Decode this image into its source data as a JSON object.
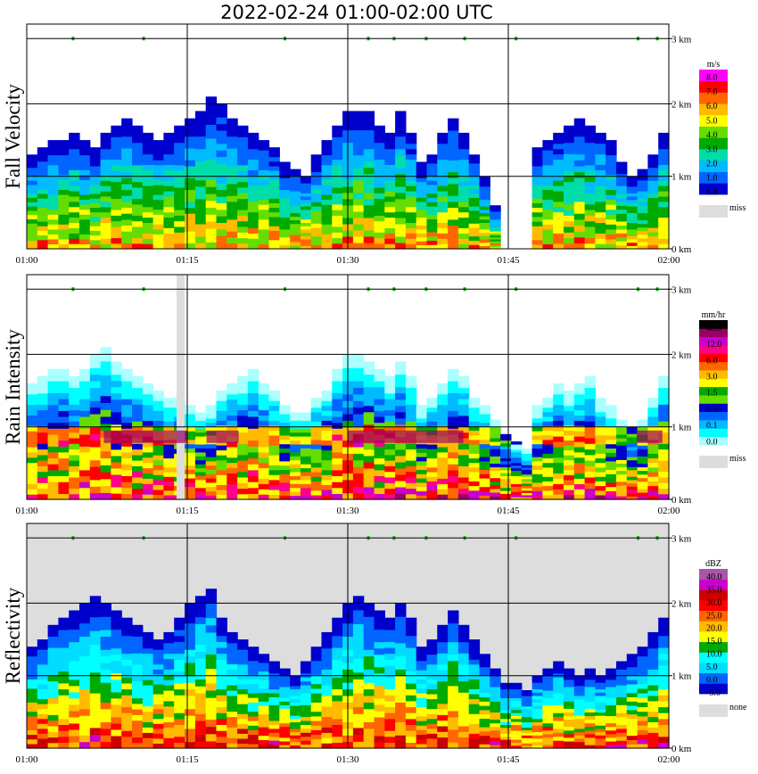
{
  "title": "2022-02-24   01:00-02:00 UTC",
  "chart_data": [
    {
      "type": "heatmap",
      "title": "Fall Velocity",
      "x_ticks": [
        "01:00",
        "01:15",
        "01:30",
        "01:45",
        "02:00"
      ],
      "y_ticks": [
        "0 km",
        "1 km",
        "2 km",
        "3 km"
      ],
      "ylim_km": [
        0,
        3.1
      ],
      "grid": true,
      "background": "#ffffff",
      "colorbar": {
        "unit": "m/s",
        "colors": [
          "#0000cc",
          "#0066ff",
          "#00bbff",
          "#00ddaa",
          "#00aa00",
          "#66dd00",
          "#ffff00",
          "#ffbb00",
          "#ff6600",
          "#ff0000",
          "#ff00ff"
        ],
        "labels": [
          "8.0",
          "7.0",
          "6.0",
          "5.0",
          "4.0",
          "3.0",
          "2.0",
          "1.0",
          "0.0"
        ],
        "miss_label": "miss"
      },
      "cloud_top_km": [
        1.3,
        1.4,
        1.5,
        1.5,
        1.6,
        1.5,
        1.4,
        1.6,
        1.7,
        1.8,
        1.7,
        1.6,
        1.5,
        1.6,
        1.7,
        1.8,
        1.9,
        2.1,
        2.0,
        1.8,
        1.7,
        1.6,
        1.5,
        1.4,
        1.2,
        1.1,
        1.0,
        1.3,
        1.5,
        1.7,
        1.9,
        1.9,
        1.9,
        1.7,
        1.6,
        1.9,
        1.6,
        1.2,
        1.3,
        1.6,
        1.8,
        1.6,
        1.3,
        1.0,
        0.6,
        0.0,
        0.0,
        0.0,
        1.4,
        1.5,
        1.6,
        1.7,
        1.8,
        1.7,
        1.6,
        1.5,
        1.2,
        1.0,
        1.1,
        1.3,
        1.6
      ],
      "cells": [
        [
          1,
          5
        ],
        [
          2,
          4
        ],
        [
          3,
          4
        ],
        [
          4,
          6
        ],
        [
          5,
          7
        ],
        [
          5,
          4
        ],
        [
          6,
          3
        ],
        [
          7,
          2
        ],
        [
          7,
          6
        ],
        [
          8,
          5
        ],
        [
          9,
          6
        ],
        [
          9,
          4
        ]
      ]
    },
    {
      "type": "heatmap",
      "title": "Rain Intensity",
      "x_ticks": [
        "01:00",
        "01:15",
        "01:30",
        "01:45",
        "02:00"
      ],
      "y_ticks": [
        "0 km",
        "1 km",
        "2 km",
        "3 km"
      ],
      "ylim_km": [
        0,
        3.1
      ],
      "grid": true,
      "background": "#ffffff",
      "colorbar": {
        "unit": "mm/hr",
        "colors": [
          "#aaffff",
          "#00ffff",
          "#00bbff",
          "#0066ff",
          "#0000cc",
          "#66dd00",
          "#00aa00",
          "#ffff00",
          "#ffbb00",
          "#ff6600",
          "#ff0000",
          "#ff0088",
          "#cc00cc",
          "#990066",
          "#000000"
        ],
        "labels": [
          "48.0",
          "12.0",
          "6.0",
          "3.0",
          "1.5",
          "0.5",
          "0.1",
          "0.0"
        ],
        "miss_label": "miss"
      },
      "cloud_top_km": [
        1.6,
        1.7,
        1.8,
        1.8,
        1.7,
        1.8,
        2.0,
        2.1,
        1.9,
        1.8,
        1.7,
        1.6,
        1.5,
        1.4,
        1.4,
        1.3,
        1.2,
        1.3,
        1.5,
        1.6,
        1.7,
        1.8,
        1.6,
        1.5,
        1.3,
        1.2,
        1.2,
        1.4,
        1.5,
        1.8,
        2.0,
        2.0,
        1.9,
        1.8,
        1.7,
        1.9,
        1.7,
        1.3,
        1.4,
        1.6,
        1.8,
        1.7,
        1.4,
        1.3,
        1.1,
        0.9,
        0.8,
        0.7,
        1.3,
        1.4,
        1.6,
        1.5,
        1.6,
        1.7,
        1.4,
        1.3,
        1.1,
        1.0,
        1.1,
        1.4,
        1.7
      ],
      "cells": [
        [
          3,
          7
        ],
        [
          5,
          8
        ],
        [
          7,
          9
        ],
        [
          9,
          11
        ],
        [
          11,
          12
        ],
        [
          13,
          13
        ],
        [
          14,
          14
        ],
        [
          10,
          10
        ],
        [
          8,
          5
        ],
        [
          6,
          3
        ],
        [
          4,
          2
        ],
        [
          2,
          1
        ]
      ]
    },
    {
      "type": "heatmap",
      "title": "Reflectivity",
      "x_ticks": [
        "01:00",
        "01:15",
        "01:30",
        "01:45",
        "02:00"
      ],
      "y_ticks": [
        "0 km",
        "1 km",
        "2 km",
        "3 km"
      ],
      "ylim_km": [
        0,
        3.1
      ],
      "grid": true,
      "background": "#dddddd",
      "colorbar": {
        "unit": "dBZ",
        "colors": [
          "#0000cc",
          "#0066ff",
          "#00ddff",
          "#00ffff",
          "#00aa00",
          "#ffff00",
          "#ffbb00",
          "#ff6600",
          "#ff0000",
          "#cc0000",
          "#cc00cc",
          "#aa55aa"
        ],
        "labels": [
          "40.0",
          "35.0",
          "30.0",
          "25.0",
          "20.0",
          "15.0",
          "10.0",
          "5.0",
          "0.0",
          "-5.0"
        ],
        "miss_label": "none"
      },
      "cloud_top_km": [
        1.4,
        1.5,
        1.7,
        1.8,
        1.9,
        2.0,
        2.1,
        2.0,
        1.9,
        1.8,
        1.7,
        1.6,
        1.5,
        1.6,
        1.8,
        2.0,
        2.1,
        2.2,
        1.8,
        1.6,
        1.5,
        1.4,
        1.3,
        1.2,
        1.1,
        1.0,
        1.2,
        1.4,
        1.6,
        1.8,
        2.0,
        2.1,
        2.0,
        1.9,
        1.8,
        2.0,
        1.8,
        1.4,
        1.5,
        1.7,
        1.9,
        1.7,
        1.5,
        1.3,
        1.1,
        0.9,
        0.9,
        0.8,
        1.0,
        1.1,
        1.2,
        1.1,
        1.0,
        1.1,
        1.0,
        1.1,
        1.2,
        1.3,
        1.4,
        1.6,
        1.8
      ],
      "cells": [
        [
          2,
          5
        ],
        [
          4,
          6
        ],
        [
          6,
          7
        ],
        [
          8,
          8
        ],
        [
          10,
          9
        ],
        [
          7,
          8
        ],
        [
          5,
          6
        ],
        [
          3,
          4
        ],
        [
          9,
          10
        ],
        [
          11,
          10
        ],
        [
          1,
          2
        ],
        [
          0,
          1
        ]
      ]
    }
  ]
}
